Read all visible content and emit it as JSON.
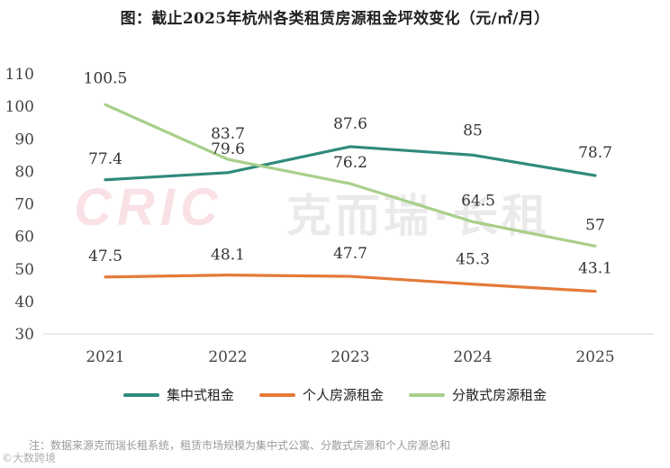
{
  "title": "图：截止2025年杭州各类租赁房源租金坪效变化（元/㎡/月）",
  "watermark": {
    "logo": "CRIC",
    "brand": "克而瑞·长租"
  },
  "corner_mark": "©大数跨境",
  "note": "注：数据来源克而瑞长租系统，租赁市场规模为集中式公寓、分散式房源和个人房源总和",
  "chart_data": {
    "type": "line",
    "title": "图：截止2025年杭州各类租赁房源租金坪效变化（元/㎡/月）",
    "xlabel": "",
    "ylabel": "",
    "ylim": [
      30,
      110
    ],
    "yticks": [
      "30",
      "40",
      "50",
      "60",
      "70",
      "80",
      "90",
      "100",
      "110"
    ],
    "categories": [
      "2021",
      "2022",
      "2023",
      "2024",
      "2025"
    ],
    "grid": false,
    "legend_position": "bottom",
    "series": [
      {
        "name": "集中式租金",
        "color": "#2f8a7c",
        "values": [
          77.4,
          79.6,
          87.6,
          85,
          78.7
        ],
        "labels": [
          "77.4",
          "79.6",
          "87.6",
          "85",
          "78.7"
        ]
      },
      {
        "name": "个人房源租金",
        "color": "#e57a3a",
        "values": [
          47.5,
          48.1,
          47.7,
          45.3,
          43.1
        ],
        "labels": [
          "47.5",
          "48.1",
          "47.7",
          "45.3",
          "43.1"
        ]
      },
      {
        "name": "分散式房源租金",
        "color": "#a8cf8a",
        "values": [
          100.5,
          83.7,
          76.2,
          64.5,
          57
        ],
        "labels": [
          "100.5",
          "83.7",
          "76.2",
          "64.5",
          "57"
        ]
      }
    ]
  }
}
